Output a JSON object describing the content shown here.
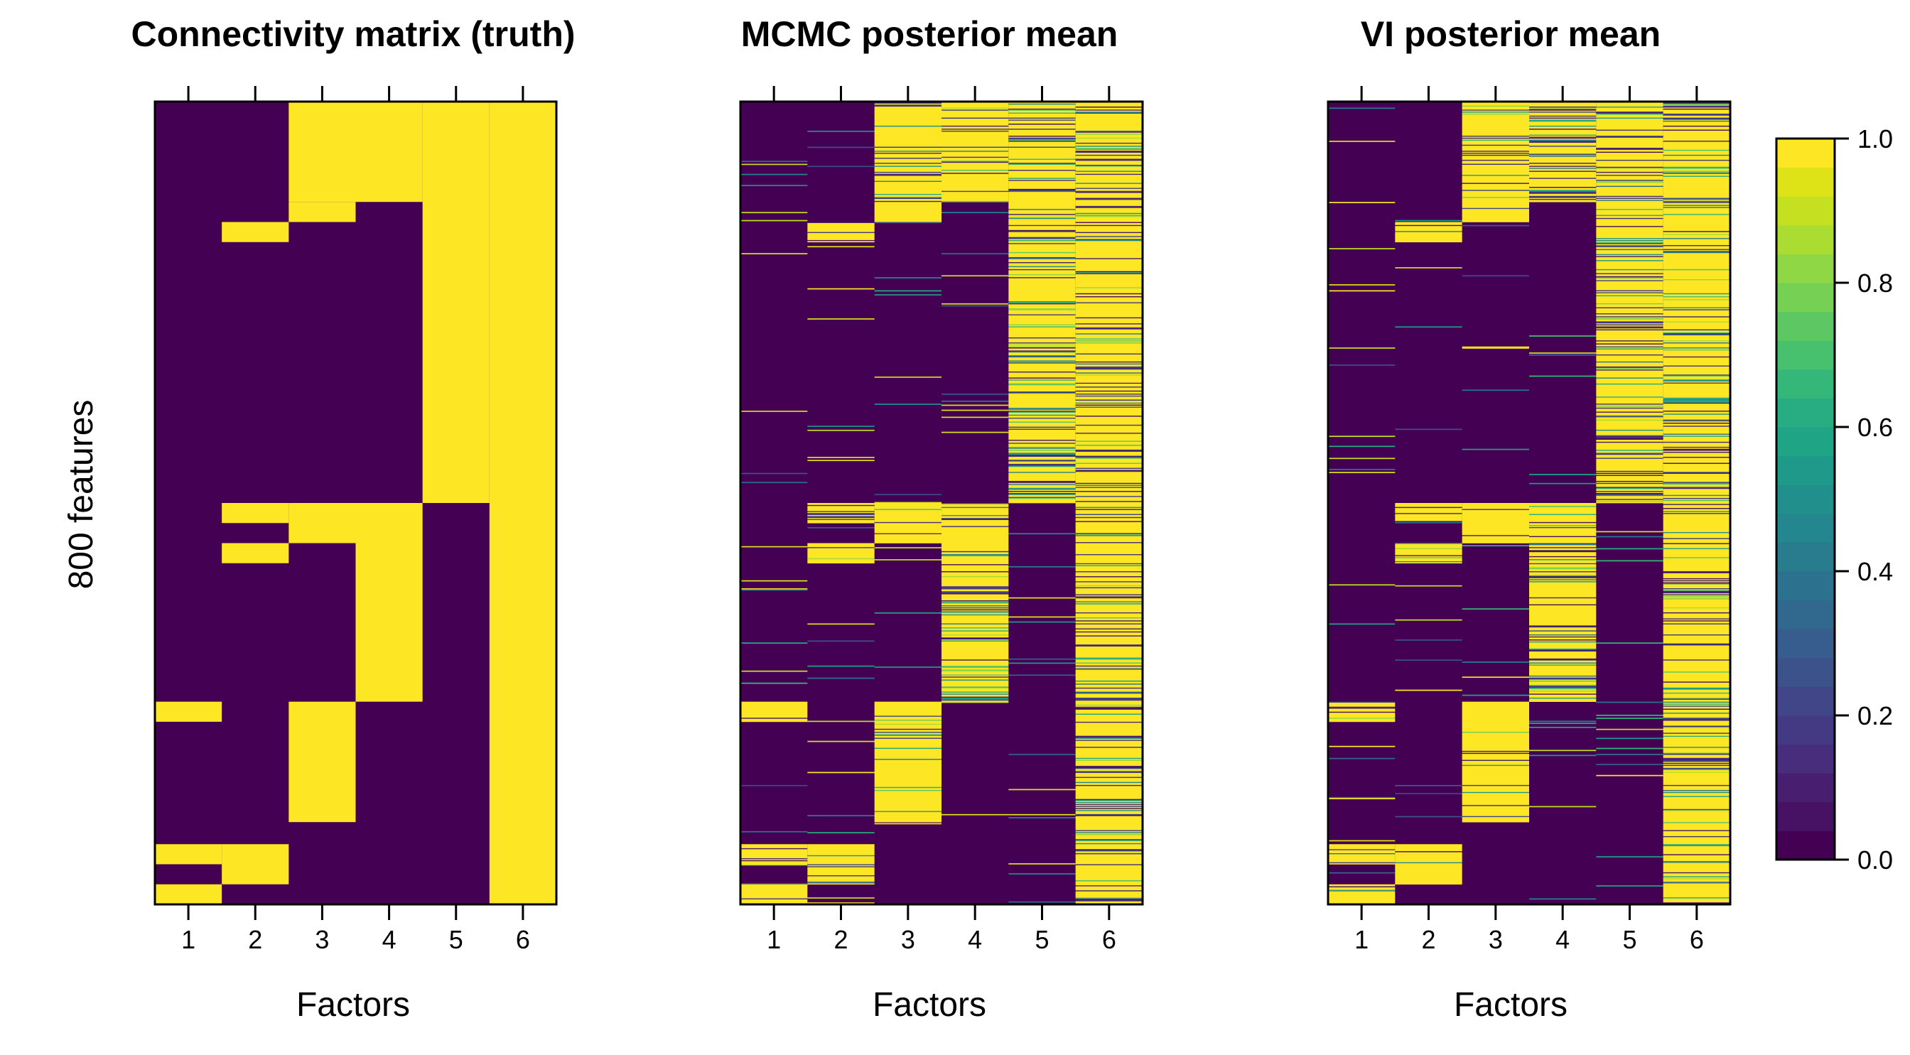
{
  "figure": {
    "colors": {
      "low": "#440154",
      "high": "#FDE725",
      "frame": "#000000"
    },
    "colormap": [
      "#440154",
      "#471164",
      "#481F70",
      "#472D7B",
      "#443A83",
      "#404688",
      "#3B528B",
      "#365D8D",
      "#31688E",
      "#2C728E",
      "#287C8E",
      "#24868E",
      "#21908C",
      "#1F9A8A",
      "#20A486",
      "#27AD81",
      "#35B779",
      "#47C16E",
      "#5DC863",
      "#75D054",
      "#8FD744",
      "#AADC32",
      "#C5E021",
      "#DEE318",
      "#FDE725"
    ]
  },
  "chart_data": [
    {
      "type": "heatmap",
      "title": "Connectivity matrix (truth)",
      "xlabel": "Factors",
      "ylabel": "800 features",
      "x_ticks": [
        "1",
        "2",
        "3",
        "4",
        "5",
        "6"
      ],
      "n_rows": 800,
      "value_range": [
        0,
        1
      ],
      "blocks": [
        {
          "factor": 1,
          "rows": [
            [
              598,
              618
            ],
            [
              740,
              760
            ],
            [
              780,
              800
            ]
          ]
        },
        {
          "factor": 2,
          "rows": [
            [
              120,
              140
            ],
            [
              400,
              420
            ],
            [
              440,
              460
            ],
            [
              740,
              780
            ]
          ]
        },
        {
          "factor": 3,
          "rows": [
            [
              0,
              100
            ],
            [
              100,
              120
            ],
            [
              400,
              440
            ],
            [
              598,
              718
            ]
          ]
        },
        {
          "factor": 4,
          "rows": [
            [
              0,
              100
            ],
            [
              400,
              598
            ]
          ]
        },
        {
          "factor": 5,
          "rows": [
            [
              0,
              400
            ]
          ]
        },
        {
          "factor": 6,
          "rows": [
            [
              0,
              800
            ]
          ]
        }
      ]
    },
    {
      "type": "heatmap",
      "title": "MCMC posterior mean",
      "xlabel": "Factors",
      "x_ticks": [
        "1",
        "2",
        "3",
        "4",
        "5",
        "6"
      ],
      "n_rows": 800,
      "value_range": [
        0,
        1
      ],
      "estimate_of": "Connectivity matrix (truth)"
    },
    {
      "type": "heatmap",
      "title": "VI posterior mean",
      "xlabel": "Factors",
      "x_ticks": [
        "1",
        "2",
        "3",
        "4",
        "5",
        "6"
      ],
      "n_rows": 800,
      "value_range": [
        0,
        1
      ],
      "estimate_of": "Connectivity matrix (truth)"
    }
  ],
  "colorbar": {
    "ticks": [
      "0.0",
      "0.2",
      "0.4",
      "0.6",
      "0.8",
      "1.0"
    ],
    "tick_values": [
      0,
      0.2,
      0.4,
      0.6,
      0.8,
      1.0
    ]
  }
}
